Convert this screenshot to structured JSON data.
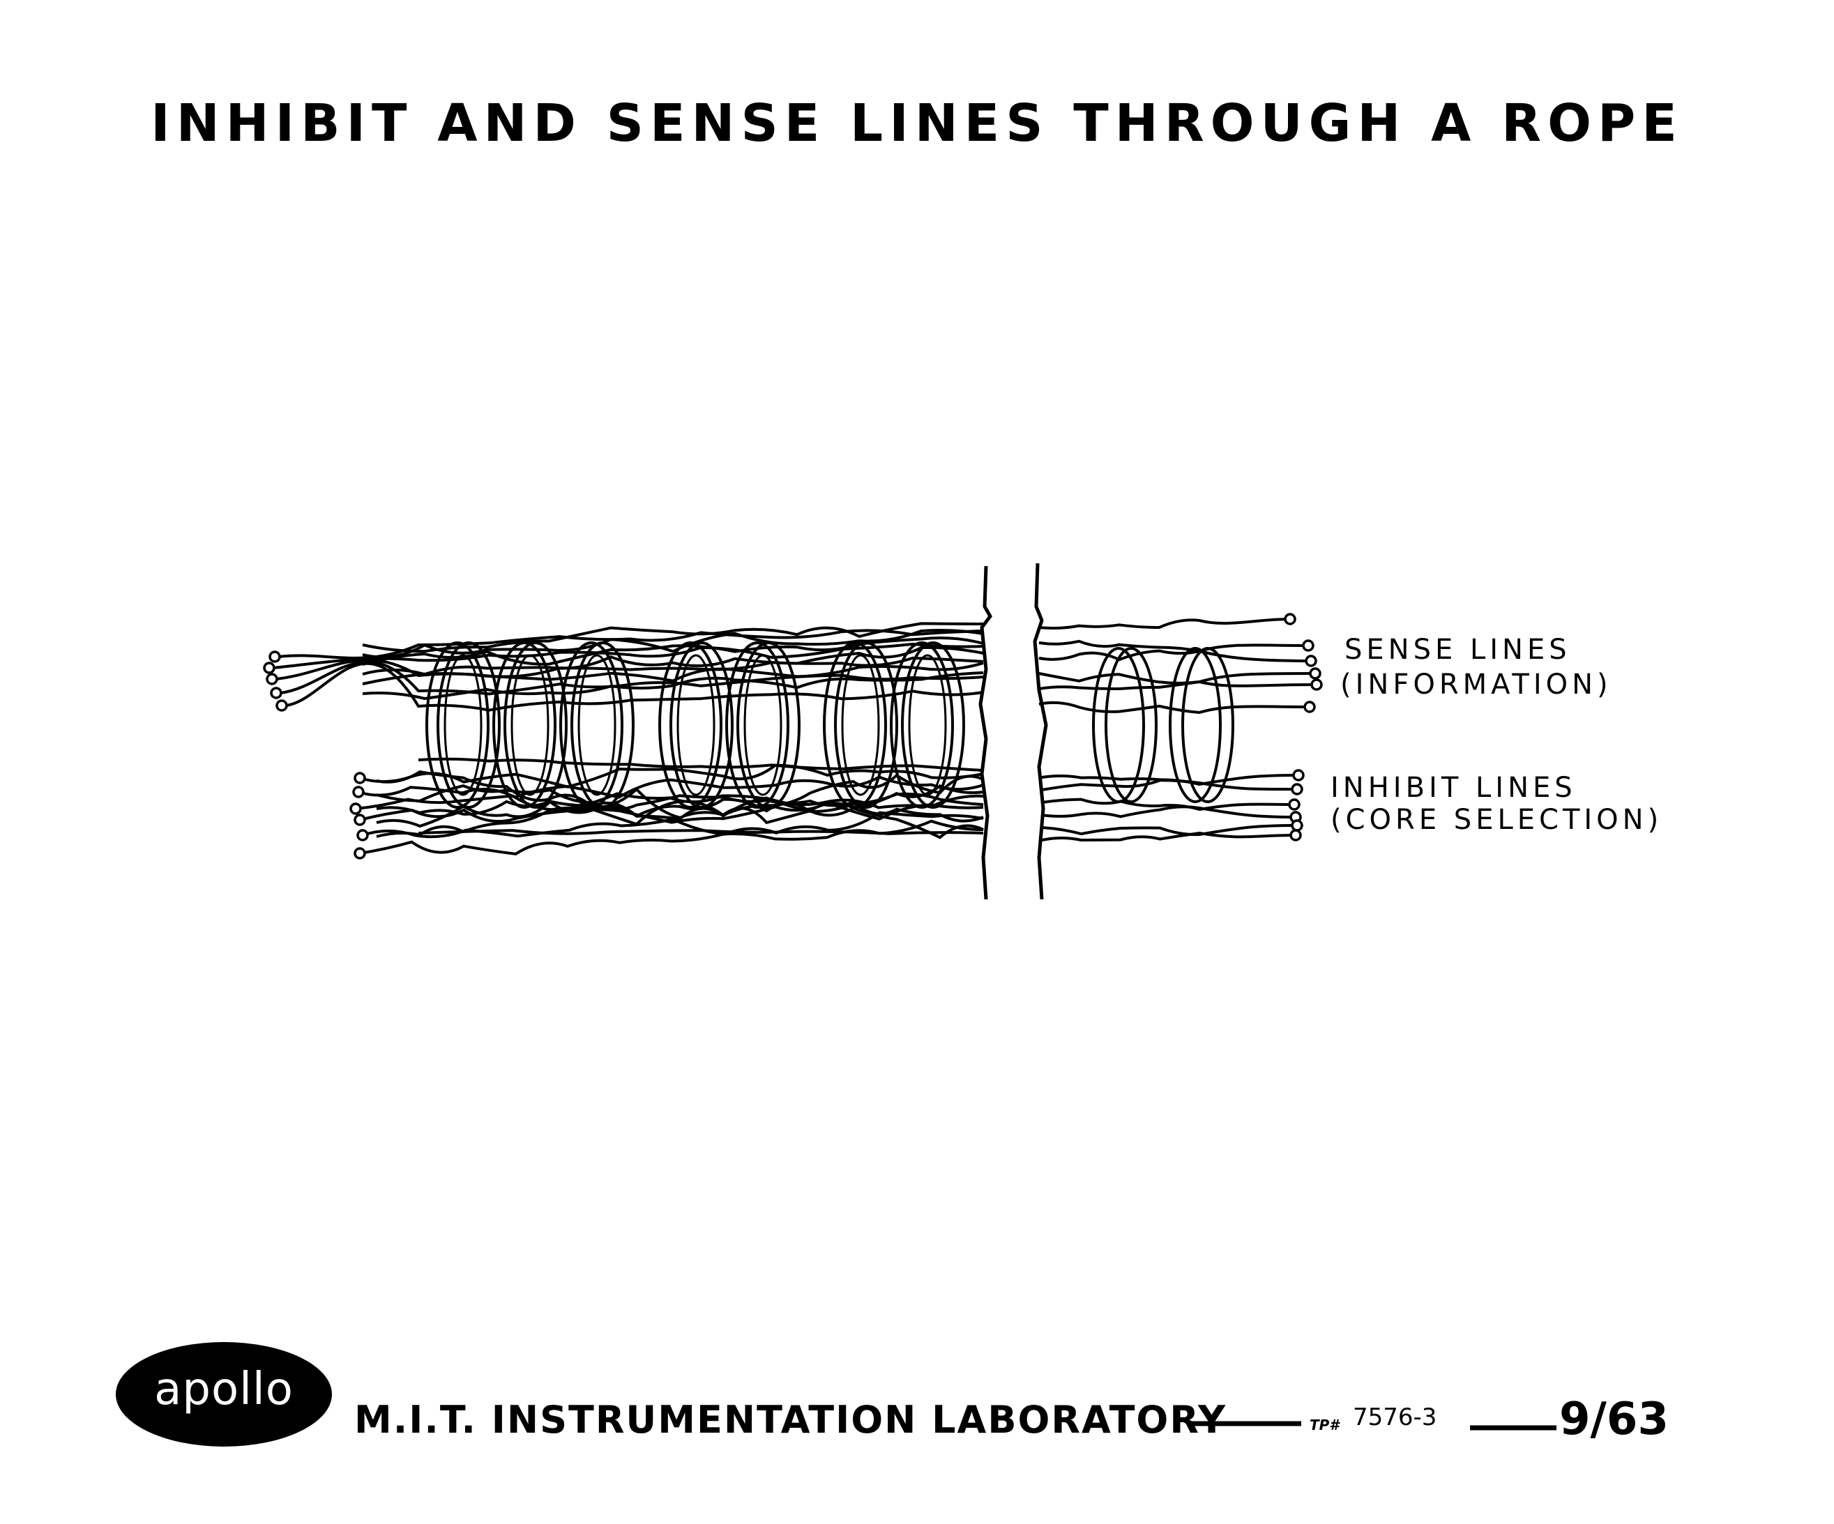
{
  "title": "INHIBIT AND SENSE LINES THROUGH A ROPE",
  "labels": {
    "sense_line1": "SENSE LINES",
    "sense_line2": "(INFORMATION)",
    "inhibit_line1": "INHIBIT LINES",
    "inhibit_line2": "(CORE SELECTION)"
  },
  "footer": {
    "logo_text": "apollo",
    "lab": "M.I.T. INSTRUMENTATION LABORATORY",
    "tp_prefix": "TP#",
    "tp_number": "7576-3",
    "date": "9/63"
  },
  "colors": {
    "ink": "#000000",
    "paper": "#ffffff"
  }
}
